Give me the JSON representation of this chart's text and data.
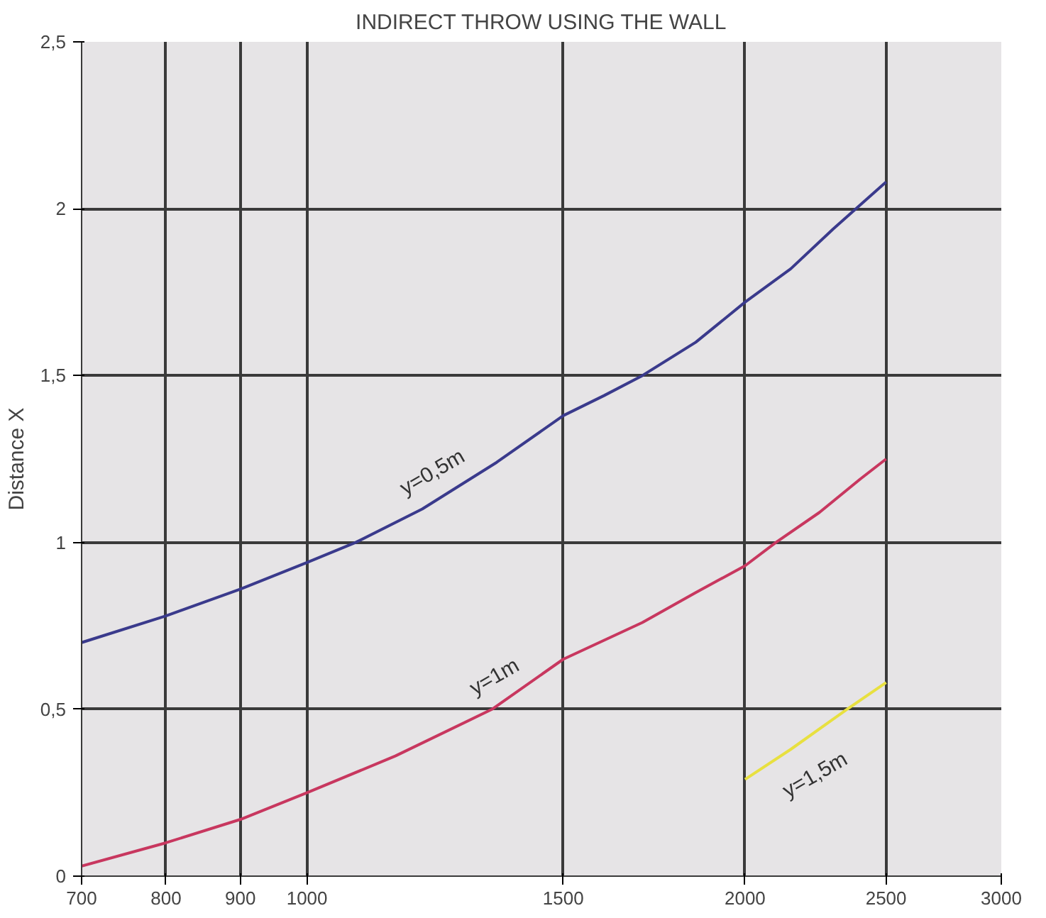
{
  "chart_data": {
    "type": "line",
    "title": "INDIRECT THROW USING THE WALL",
    "ylabel": "Distance X",
    "log": "x",
    "grid": true,
    "xlim": [
      700,
      3000
    ],
    "xticks": [
      700,
      800,
      900,
      1000,
      1500,
      2000,
      2500,
      3000
    ],
    "ylim": [
      0,
      2.5
    ],
    "yticks": [
      0,
      {
        "value": 0.5,
        "label": "0,5"
      },
      1,
      {
        "value": 1.5,
        "label": "1,5"
      },
      2,
      {
        "value": 2.5,
        "label": "2,5"
      }
    ],
    "series": [
      {
        "name": "y=0,5m",
        "color": "#3a3a8c",
        "x": [
          700,
          800,
          900,
          1000,
          1080,
          1200,
          1350,
          1500,
          1600,
          1700,
          1850,
          2000,
          2150,
          2300,
          2500
        ],
        "values": [
          0.7,
          0.78,
          0.86,
          0.94,
          1.0,
          1.1,
          1.24,
          1.38,
          1.44,
          1.5,
          1.6,
          1.72,
          1.82,
          1.94,
          2.08
        ]
      },
      {
        "name": "y=1m",
        "color": "#c8375f",
        "x": [
          700,
          800,
          900,
          1000,
          1150,
          1340,
          1500,
          1700,
          1850,
          2000,
          2100,
          2250,
          2400,
          2500
        ],
        "values": [
          0.03,
          0.1,
          0.17,
          0.25,
          0.36,
          0.5,
          0.65,
          0.76,
          0.85,
          0.93,
          1.0,
          1.09,
          1.19,
          1.25
        ]
      },
      {
        "name": "y=1,5m",
        "color": "#e8e040",
        "x": [
          2000,
          2150,
          2350,
          2500
        ],
        "values": [
          0.29,
          0.38,
          0.5,
          0.58
        ]
      }
    ]
  }
}
